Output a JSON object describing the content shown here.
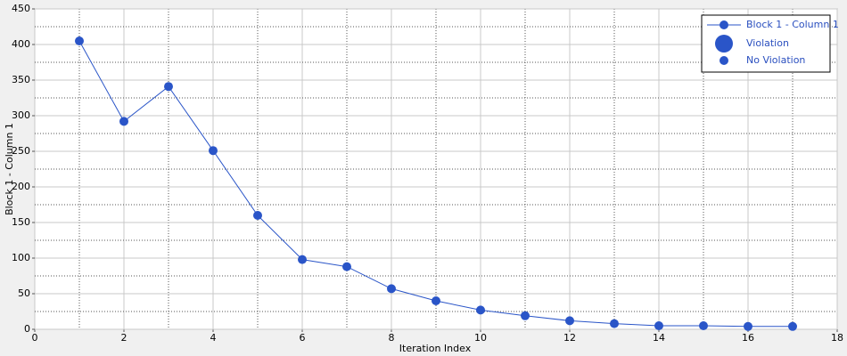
{
  "chart_data": {
    "type": "line",
    "x": [
      1,
      2,
      3,
      4,
      5,
      6,
      7,
      8,
      9,
      10,
      11,
      12,
      13,
      14,
      15,
      16,
      17
    ],
    "series": [
      {
        "name": "Block 1 - Column 1",
        "color": "#2a55c8",
        "values": [
          405,
          292,
          341,
          251,
          160,
          98,
          88,
          57,
          40,
          27,
          19,
          12,
          8,
          5,
          5,
          4,
          4
        ]
      }
    ],
    "x_label": "Iteration Index",
    "y_label": "Block 1 - Column 1",
    "xlim": [
      0,
      18
    ],
    "xticks": [
      0,
      2,
      4,
      6,
      8,
      10,
      12,
      14,
      16,
      18
    ],
    "ylim": [
      0,
      450
    ],
    "yticks": [
      0,
      50,
      100,
      150,
      200,
      250,
      300,
      350,
      400,
      450
    ],
    "grid": true,
    "legend_position": "upper right",
    "legend_items": [
      "Violation",
      "No Violation"
    ]
  }
}
